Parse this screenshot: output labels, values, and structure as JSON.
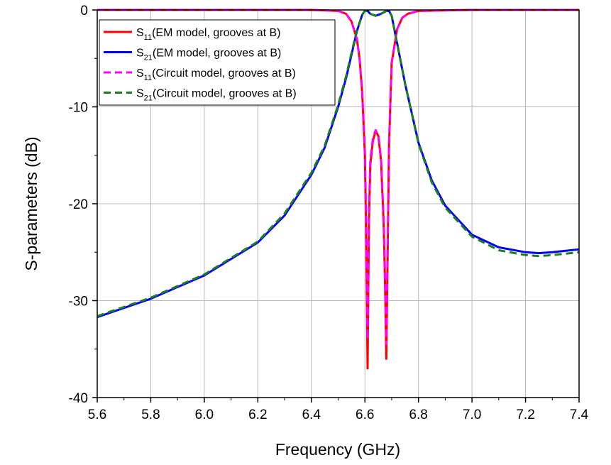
{
  "chart_data": {
    "type": "line",
    "title": "",
    "xlabel": "Frequency (GHz)",
    "ylabel": "S-parameters (dB)",
    "xlim": [
      5.6,
      7.4
    ],
    "ylim": [
      -40,
      0
    ],
    "xticks": [
      "5.6",
      "5.8",
      "6.0",
      "6.2",
      "6.4",
      "6.6",
      "6.8",
      "7.0",
      "7.2",
      "7.4"
    ],
    "yticks": [
      "0",
      "-10",
      "-20",
      "-30",
      "-40"
    ],
    "grid": true,
    "legend_position": "top-left",
    "series": [
      {
        "name": "S11(EM model, grooves at B)",
        "legend_main": "S",
        "legend_sub": "11",
        "legend_rest": "(EM model, grooves at B)",
        "color": "#ff0000",
        "dash": "solid",
        "x": [
          5.6,
          6.4,
          6.5,
          6.53,
          6.55,
          6.57,
          6.58,
          6.59,
          6.6,
          6.605,
          6.61,
          6.615,
          6.62,
          6.63,
          6.64,
          6.65,
          6.66,
          6.67,
          6.675,
          6.68,
          6.685,
          6.69,
          6.7,
          6.72,
          6.74,
          6.76,
          6.8,
          7.0,
          7.4
        ],
        "y": [
          0,
          0,
          -0.1,
          -0.4,
          -1.2,
          -3.0,
          -5.0,
          -8.5,
          -15.0,
          -24.0,
          -37.0,
          -22.0,
          -16.0,
          -13.5,
          -12.5,
          -13.0,
          -15.5,
          -22.0,
          -28.0,
          -36.0,
          -25.0,
          -14.0,
          -5.5,
          -2.0,
          -0.8,
          -0.4,
          -0.1,
          0,
          0
        ]
      },
      {
        "name": "S21(EM model, grooves at B)",
        "legend_main": "S",
        "legend_sub": "21",
        "legend_rest": "(EM model, grooves at B)",
        "color": "#0000ff",
        "dash": "solid",
        "x": [
          5.6,
          5.8,
          6.0,
          6.2,
          6.3,
          6.4,
          6.45,
          6.5,
          6.53,
          6.55,
          6.57,
          6.59,
          6.6,
          6.61,
          6.62,
          6.64,
          6.66,
          6.68,
          6.69,
          6.7,
          6.72,
          6.75,
          6.8,
          6.85,
          6.9,
          7.0,
          7.1,
          7.2,
          7.25,
          7.3,
          7.4
        ],
        "y": [
          -31.7,
          -29.8,
          -27.4,
          -24.0,
          -21.2,
          -17.0,
          -14.2,
          -10.0,
          -7.0,
          -4.6,
          -2.2,
          -0.5,
          -0.1,
          -0.1,
          -0.4,
          -0.6,
          -0.4,
          -0.1,
          -0.1,
          -0.6,
          -3.4,
          -7.6,
          -13.7,
          -17.6,
          -20.2,
          -23.2,
          -24.5,
          -25.0,
          -25.1,
          -25.0,
          -24.7
        ]
      },
      {
        "name": "S11(Circuit model, grooves at B)",
        "legend_main": "S",
        "legend_sub": "11",
        "legend_rest": "(Circuit model, grooves at B)",
        "color": "#ff00ff",
        "dash": "dashed",
        "x": [
          5.6,
          6.4,
          6.5,
          6.53,
          6.55,
          6.57,
          6.58,
          6.59,
          6.6,
          6.605,
          6.61,
          6.615,
          6.62,
          6.63,
          6.64,
          6.65,
          6.66,
          6.67,
          6.675,
          6.68,
          6.685,
          6.69,
          6.7,
          6.72,
          6.74,
          6.76,
          6.8,
          7.0,
          7.4
        ],
        "y": [
          0,
          0,
          -0.1,
          -0.4,
          -1.2,
          -3.0,
          -5.0,
          -8.5,
          -14.5,
          -22.0,
          -34.0,
          -21.0,
          -15.5,
          -13.2,
          -12.4,
          -12.9,
          -15.3,
          -21.5,
          -27.0,
          -34.5,
          -24.5,
          -13.8,
          -5.4,
          -2.0,
          -0.8,
          -0.4,
          -0.1,
          0,
          0
        ]
      },
      {
        "name": "S21(Circuit model, grooves at B)",
        "legend_main": "S",
        "legend_sub": "21",
        "legend_rest": "(Circuit model, grooves at B)",
        "color": "#1e7d1e",
        "dash": "dashed",
        "x": [
          5.6,
          5.8,
          6.0,
          6.2,
          6.3,
          6.4,
          6.45,
          6.5,
          6.53,
          6.55,
          6.57,
          6.59,
          6.6,
          6.61,
          6.62,
          6.64,
          6.66,
          6.68,
          6.69,
          6.7,
          6.72,
          6.75,
          6.8,
          6.85,
          6.9,
          7.0,
          7.1,
          7.2,
          7.25,
          7.3,
          7.4
        ],
        "y": [
          -31.6,
          -29.7,
          -27.3,
          -23.9,
          -21.0,
          -16.8,
          -14.0,
          -9.8,
          -6.8,
          -4.4,
          -2.1,
          -0.5,
          -0.1,
          -0.1,
          -0.4,
          -0.6,
          -0.4,
          -0.1,
          -0.1,
          -0.6,
          -3.4,
          -7.6,
          -13.8,
          -17.8,
          -20.4,
          -23.4,
          -24.8,
          -25.3,
          -25.4,
          -25.3,
          -25.0
        ]
      }
    ]
  }
}
